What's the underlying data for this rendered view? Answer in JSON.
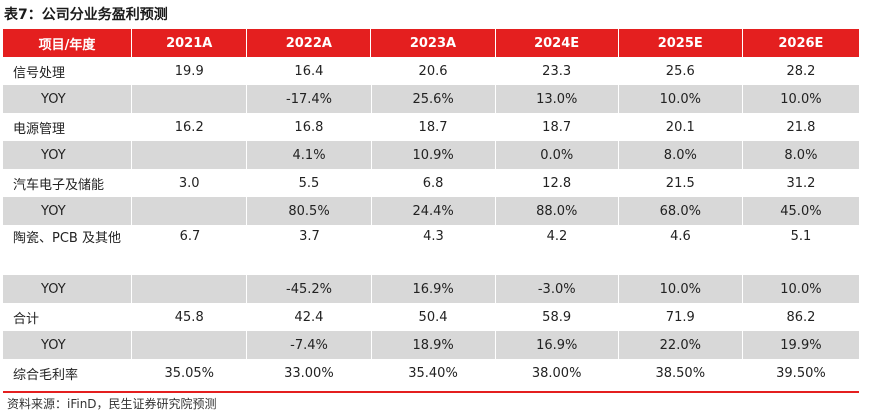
{
  "title": "表7：公司分业务盈利预测",
  "header": [
    "项目/年度",
    "2021A",
    "2022A",
    "2023A",
    "2024E",
    "2025E",
    "2026E"
  ],
  "rows": [
    {
      "label": "信号处理",
      "values": [
        "19.9",
        "16.4",
        "20.6",
        "23.3",
        "25.6",
        "28.2"
      ]
    },
    {
      "label": "YOY",
      "values": [
        "",
        "-17.4%",
        "25.6%",
        "13.0%",
        "10.0%",
        "10.0%"
      ]
    },
    {
      "label": "电源管理",
      "values": [
        "16.2",
        "16.8",
        "18.7",
        "18.7",
        "20.1",
        "21.8"
      ]
    },
    {
      "label": "YOY",
      "values": [
        "",
        "4.1%",
        "10.9%",
        "0.0%",
        "8.0%",
        "8.0%"
      ]
    },
    {
      "label": "汽车电子及储能",
      "values": [
        "3.0",
        "5.5",
        "6.8",
        "12.8",
        "21.5",
        "31.2"
      ]
    },
    {
      "label": "YOY",
      "values": [
        "",
        "80.5%",
        "24.4%",
        "88.0%",
        "68.0%",
        "45.0%"
      ]
    },
    {
      "label": "陶瓷、PCB 及其他",
      "values": [
        "6.7",
        "3.7",
        "4.3",
        "4.2",
        "4.6",
        "5.1"
      ]
    },
    {
      "label": "YOY",
      "values": [
        "",
        "-45.2%",
        "16.9%",
        "-3.0%",
        "10.0%",
        "10.0%"
      ]
    },
    {
      "label": "合计",
      "values": [
        "45.8",
        "42.4",
        "50.4",
        "58.9",
        "71.9",
        "86.2"
      ]
    },
    {
      "label": "YOY",
      "values": [
        "",
        "-7.4%",
        "18.9%",
        "16.9%",
        "22.0%",
        "19.9%"
      ]
    },
    {
      "label": "综合毛利率",
      "values": [
        "35.05%",
        "33.00%",
        "35.40%",
        "38.00%",
        "38.50%",
        "39.50%"
      ]
    }
  ],
  "source": "资料来源：iFinD，民生证券研究院预测",
  "colors": {
    "header_bg": "#e41f1f",
    "alt_row_bg": "#d8d8d8",
    "rule": "#e41f1f"
  }
}
